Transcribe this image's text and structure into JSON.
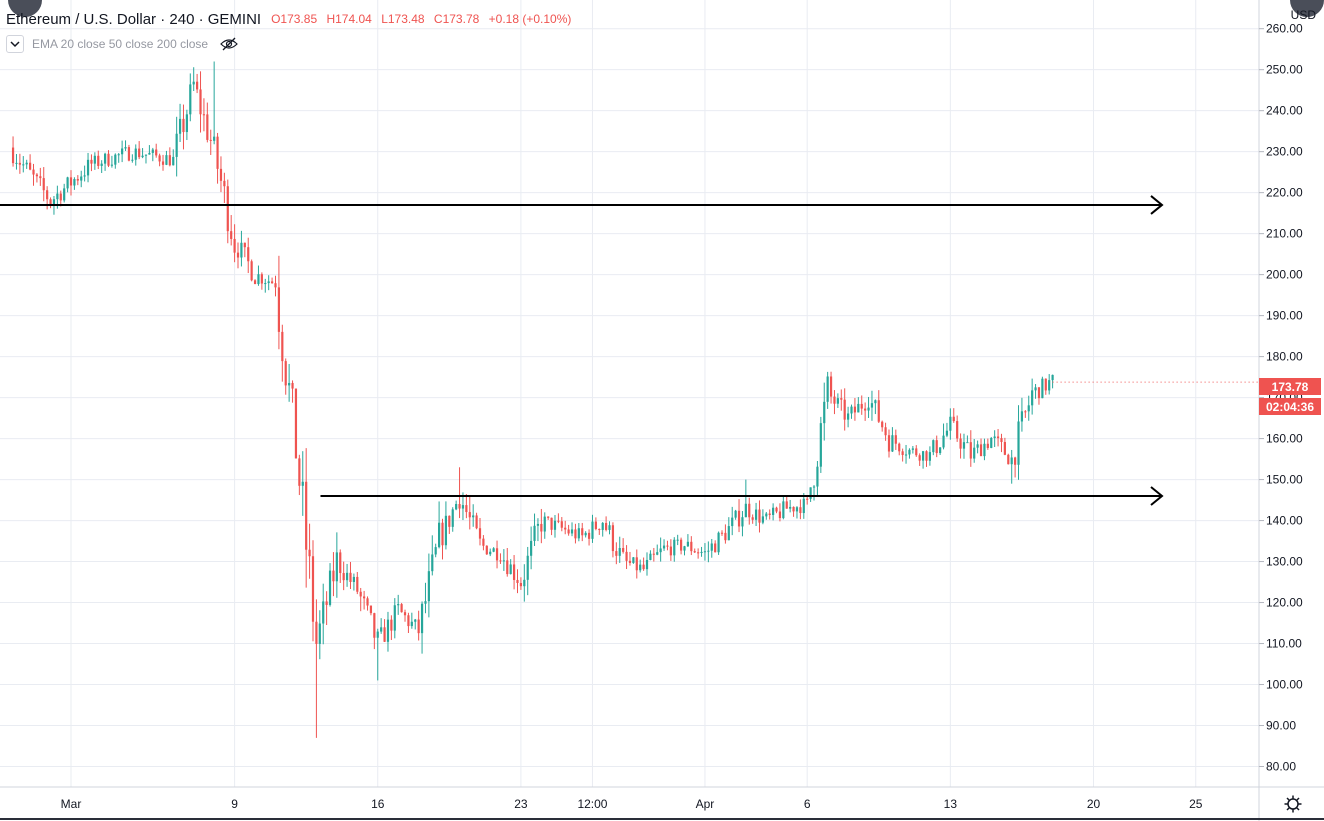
{
  "header": {
    "symbol": "Ethereum / U.S. Dollar · 240 · GEMINI",
    "open": "O173.85",
    "high": "H174.04",
    "low": "L173.48",
    "close": "C173.78",
    "change": "+0.18 (+0.10%)"
  },
  "indicator": {
    "label": "EMA 20 close 50 close 200 close",
    "collapse_icon": "chevron-down-icon",
    "visibility_icon": "eye-off-icon"
  },
  "price_axis": {
    "currency": "USD",
    "last_price": "173.78",
    "countdown": "02:04:36"
  },
  "colors": {
    "up": "#26a69a",
    "down": "#ef5350",
    "grid": "#e9ecf2",
    "line": "#000000"
  },
  "chart_data": {
    "type": "candlestick",
    "title": "",
    "ylim": [
      75,
      267
    ],
    "yticks": [
      260,
      250,
      240,
      230,
      220,
      210,
      200,
      190,
      180,
      170,
      160,
      150,
      140,
      130,
      120,
      110,
      100,
      90,
      80
    ],
    "x_ticks": [
      "Mar",
      "9",
      "16",
      "23",
      "12:00",
      "Apr",
      "6",
      "13",
      "20",
      "25"
    ],
    "grid": true,
    "series": [
      {
        "type": "price-path",
        "points": [
          [
            "Feb 27",
            231
          ],
          [
            "Feb 29",
            218
          ],
          [
            "Mar 2",
            227
          ],
          [
            "Mar 4",
            230
          ],
          [
            "Mar 6",
            228
          ],
          [
            "Mar 7",
            246
          ],
          [
            "Mar 8",
            230
          ],
          [
            "Mar 9",
            208
          ],
          [
            "Mar 10",
            200
          ],
          [
            "Mar 11",
            198
          ],
          [
            "Mar 12",
            158
          ],
          [
            "Mar 13",
            110
          ],
          [
            "Mar 14",
            130
          ],
          [
            "Mar 15",
            123
          ],
          [
            "Mar 16",
            110
          ],
          [
            "Mar 17",
            118
          ],
          [
            "Mar 18",
            113
          ],
          [
            "Mar 19",
            135
          ],
          [
            "Mar 20",
            146
          ],
          [
            "Mar 21",
            134
          ],
          [
            "Mar 22",
            132
          ],
          [
            "Mar 23",
            125
          ],
          [
            "Mar 24",
            140
          ],
          [
            "Mar 25",
            138
          ],
          [
            "Mar 26",
            136
          ],
          [
            "Mar 27",
            140
          ],
          [
            "Mar 28",
            130
          ],
          [
            "Mar 29",
            128
          ],
          [
            "Mar 30",
            133
          ],
          [
            "Mar 31",
            134
          ],
          [
            "Apr 1",
            132
          ],
          [
            "Apr 2",
            137
          ],
          [
            "Apr 3",
            143
          ],
          [
            "Apr 4",
            140
          ],
          [
            "Apr 5",
            143
          ],
          [
            "Apr 6",
            144
          ],
          [
            "Apr 7",
            171
          ],
          [
            "Apr 8",
            165
          ],
          [
            "Apr 9",
            170
          ],
          [
            "Apr 10",
            160
          ],
          [
            "Apr 11",
            157
          ],
          [
            "Apr 12",
            156
          ],
          [
            "Apr 13",
            163
          ],
          [
            "Apr 14",
            156
          ],
          [
            "Apr 15",
            160
          ],
          [
            "Apr 16",
            155
          ],
          [
            "Apr 17",
            171
          ],
          [
            "Apr 18",
            174
          ]
        ]
      },
      {
        "type": "wicks",
        "points": [
          [
            "Mar 8",
            252
          ],
          [
            "Mar 13",
            87
          ],
          [
            "Mar 16",
            101
          ],
          [
            "Mar 20",
            153
          ],
          [
            "Apr 3",
            150
          ],
          [
            "Apr 7",
            176
          ],
          [
            "Apr 16",
            149
          ]
        ]
      },
      {
        "type": "horizontal-ray",
        "values": [
          217,
          146
        ]
      }
    ]
  }
}
